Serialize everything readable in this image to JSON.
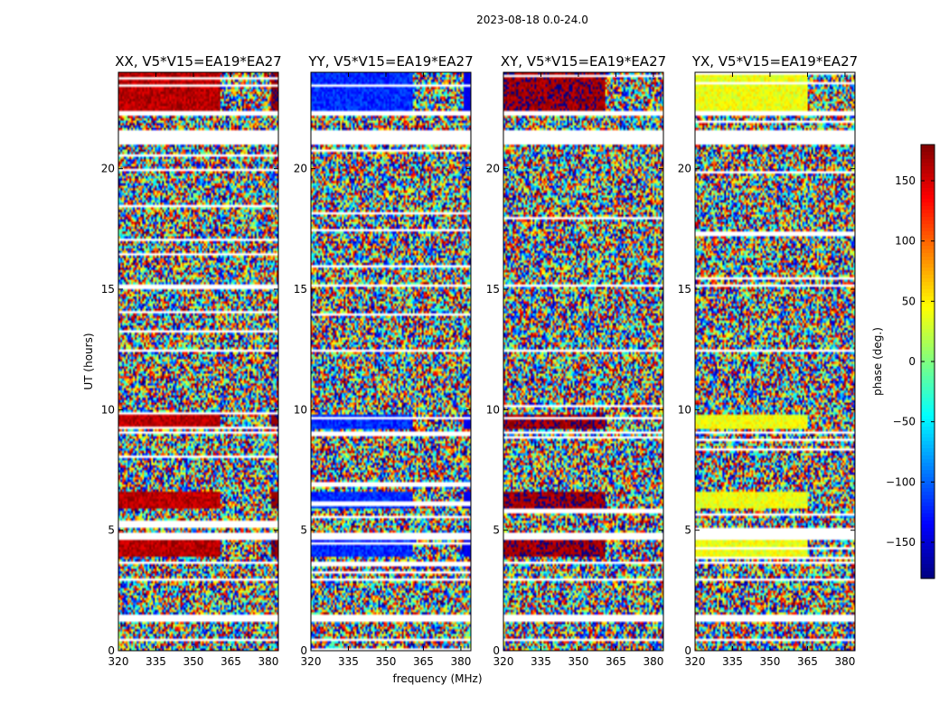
{
  "chart_data": {
    "type": "heatmap",
    "suptitle": "2023-08-18 0.0-24.0",
    "xlabel": "frequency (MHz)",
    "ylabel": "UT (hours)",
    "xlim": [
      320,
      384
    ],
    "ylim": [
      0,
      24
    ],
    "xticks": [
      320,
      335,
      350,
      365,
      380
    ],
    "xtick_labels": [
      "320",
      "335",
      "350",
      "365",
      "380"
    ],
    "yticks": [
      0,
      5,
      10,
      15,
      20
    ],
    "ytick_labels": [
      "0",
      "5",
      "10",
      "15",
      "20"
    ],
    "panels": [
      {
        "title": "XX, V5*V15=EA19*EA27",
        "polarization": "XX",
        "coherent_phase_deg": 160,
        "coherent_until_mhz": 361,
        "edge_phase_deg": 175
      },
      {
        "title": "YY, V5*V15=EA19*EA27",
        "polarization": "YY",
        "coherent_phase_deg": -120,
        "coherent_until_mhz": 361,
        "edge_phase_deg": -140
      },
      {
        "title": "XY, V5*V15=EA19*EA27",
        "polarization": "XY",
        "coherent_phase_deg": 170,
        "coherent_until_mhz": 361,
        "edge_phase_deg": null
      },
      {
        "title": "YX, V5*V15=EA19*EA27",
        "polarization": "YX",
        "coherent_phase_deg": 40,
        "coherent_until_mhz": 365,
        "edge_phase_deg": null
      }
    ],
    "coherent_time_ranges_hours": [
      [
        22.4,
        24.0
      ],
      [
        5.9,
        6.6
      ],
      [
        9.2,
        9.8
      ],
      [
        3.9,
        4.6
      ]
    ],
    "flagged_time_ranges_hours": [
      [
        22.25,
        22.4
      ],
      [
        21.05,
        21.6
      ],
      [
        15.08,
        15.22
      ],
      [
        12.4,
        12.52
      ],
      [
        9.02,
        9.12
      ],
      [
        4.62,
        4.9
      ],
      [
        3.58,
        3.72
      ],
      [
        2.9,
        3.05
      ],
      [
        1.25,
        1.5
      ],
      [
        0.38,
        0.52
      ]
    ],
    "colorbar": {
      "label": "phase (deg.)",
      "range": [
        -180,
        180
      ],
      "ticks": [
        -150,
        -100,
        -50,
        0,
        50,
        100,
        150
      ],
      "tick_labels": [
        "−150",
        "−100",
        "−50",
        "0",
        "50",
        "100",
        "150"
      ],
      "colormap": "jet"
    }
  }
}
